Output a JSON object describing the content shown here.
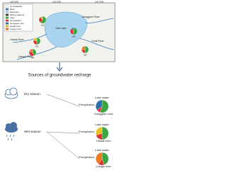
{
  "map": {
    "lon_labels": [
      "116°25'E",
      "116°30'E",
      "116°35'E"
    ],
    "legend": [
      "Groundwater",
      "River",
      "Dali Lake",
      "Mining stations",
      "Lake",
      "Precipitation",
      "Gonggeer river",
      "Haolai river",
      "Liangzi river"
    ],
    "legend_colors": [
      "#ffffff",
      "#3a7fc4",
      "#a8d4ef",
      "#333333",
      "#3aa640",
      "#e03030",
      "#2a6fb0",
      "#e8c020",
      "#f07a20"
    ],
    "places": [
      "Dali Lake",
      "Gonggeer River",
      "Shali River",
      "Haolai River",
      "Liangzi River"
    ],
    "wells": [
      {
        "label": "W1",
        "values": [
          60,
          30,
          10
        ],
        "colors": [
          "#3aa640",
          "#e03030",
          "#e8c020"
        ]
      },
      {
        "label": "W2",
        "values": [
          55,
          35,
          10
        ],
        "colors": [
          "#3aa640",
          "#e03030",
          "#2a6fb0"
        ]
      },
      {
        "label": "W3",
        "values": [
          50,
          30,
          20
        ],
        "colors": [
          "#3aa640",
          "#e03030",
          "#e8c020"
        ]
      },
      {
        "label": "W4",
        "values": [
          45,
          35,
          20
        ],
        "colors": [
          "#3aa640",
          "#e03030",
          "#f07a20"
        ]
      },
      {
        "label": "W5",
        "values": [
          50,
          25,
          25
        ],
        "colors": [
          "#3aa640",
          "#e03030",
          "#f07a20"
        ]
      }
    ]
  },
  "recharge": {
    "title": "Sources of groundwater recharge",
    "seasons": [
      {
        "label": "Dry season",
        "pies": [
          {
            "labels": [
              "Lake water",
              "Precipitation",
              "Gonggeer river"
            ],
            "values": [
              55,
              10,
              35
            ],
            "colors": [
              "#3aa640",
              "#e03030",
              "#2a6fb0"
            ]
          }
        ]
      },
      {
        "label": "Wet season",
        "pies": [
          {
            "labels": [
              "Lake water",
              "Precipitation",
              "Haolai river"
            ],
            "values": [
              50,
              20,
              30
            ],
            "colors": [
              "#3aa640",
              "#e03030",
              "#e8c020"
            ]
          },
          {
            "labels": [
              "Lake water",
              "Precipitation",
              "Liangzi river"
            ],
            "values": [
              45,
              15,
              40
            ],
            "colors": [
              "#3aa640",
              "#e03030",
              "#f07a20"
            ]
          }
        ]
      }
    ]
  }
}
